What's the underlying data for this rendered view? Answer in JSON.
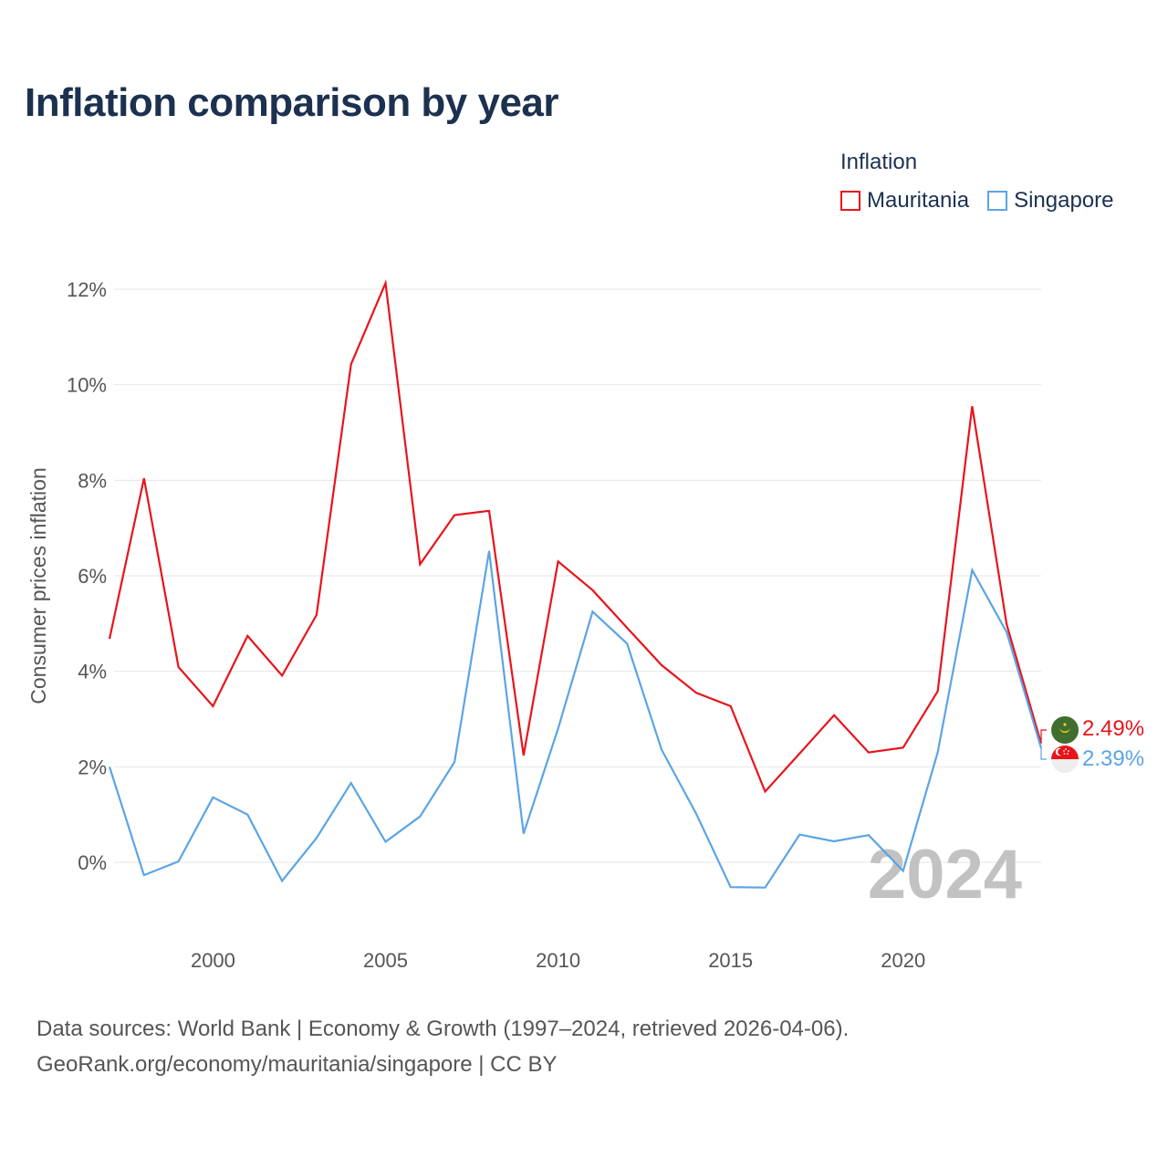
{
  "header": {
    "title": "Inflation comparison by year"
  },
  "legend": {
    "title": "Inflation",
    "items": [
      {
        "label": "Mauritania",
        "color": "#e8141b"
      },
      {
        "label": "Singapore",
        "color": "#5ba4e5"
      }
    ]
  },
  "footer": {
    "line1": "Data sources: World Bank | Economy & Growth (1997–2024, retrieved 2026-04-06).",
    "line2": "GeoRank.org/economy/mauritania/singapore | CC BY"
  },
  "chart_data": {
    "type": "line",
    "title": "Inflation comparison by year",
    "xlabel": "",
    "ylabel": "Consumer prices inflation",
    "x": [
      1997,
      1998,
      1999,
      2000,
      2001,
      2002,
      2003,
      2004,
      2005,
      2006,
      2007,
      2008,
      2009,
      2010,
      2011,
      2012,
      2013,
      2014,
      2015,
      2016,
      2017,
      2018,
      2019,
      2020,
      2021,
      2022,
      2023,
      2024
    ],
    "xlim": [
      1997,
      2024
    ],
    "ylim": [
      -2,
      12
    ],
    "x_ticks": [
      2000,
      2005,
      2010,
      2015,
      2020
    ],
    "y_ticks": [
      0,
      2,
      4,
      6,
      8,
      10,
      12
    ],
    "y_tick_labels": [
      "0%",
      "2%",
      "4%",
      "6%",
      "8%",
      "10%",
      "12%"
    ],
    "grid": true,
    "watermark_year": "2024",
    "series": [
      {
        "name": "Mauritania",
        "color": "#e8141b",
        "end_label": "2.49%",
        "values": [
          4.68,
          8.04,
          4.09,
          3.27,
          4.74,
          3.91,
          5.18,
          10.43,
          12.13,
          6.24,
          7.27,
          7.36,
          2.24,
          6.3,
          5.7,
          4.91,
          4.13,
          3.55,
          3.27,
          1.48,
          2.28,
          3.08,
          2.3,
          2.4,
          3.58,
          9.55,
          4.98,
          2.49
        ]
      },
      {
        "name": "Singapore",
        "color": "#5ba4e5",
        "end_label": "2.39%",
        "values": [
          2.0,
          -0.27,
          0.02,
          1.36,
          1.0,
          -0.39,
          0.51,
          1.66,
          0.43,
          0.96,
          2.1,
          6.52,
          0.6,
          2.8,
          5.25,
          4.58,
          2.36,
          1.02,
          -0.52,
          -0.53,
          0.58,
          0.44,
          0.57,
          -0.18,
          2.3,
          6.12,
          4.82,
          2.39
        ]
      }
    ]
  }
}
